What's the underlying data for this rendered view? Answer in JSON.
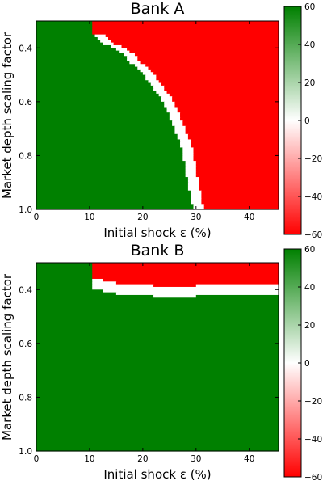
{
  "chart_data": [
    {
      "type": "heatmap",
      "title": "Bank A",
      "xlabel": "Initial shock ε (%)",
      "ylabel": "Market depth scaling factor",
      "xlim": [
        0,
        45.5
      ],
      "ylim": [
        0.3,
        1.0
      ],
      "y_inverted": true,
      "x_ticks": [
        "0",
        "10",
        "20",
        "30",
        "40"
      ],
      "y_ticks": [
        "0.4",
        "0.6",
        "0.8",
        "1.0"
      ],
      "colorbar": {
        "min": -60,
        "max": 60,
        "ticks": [
          "60",
          "40",
          "20",
          "0",
          "−20",
          "−40",
          "−60"
        ],
        "colors": [
          "#ff0000",
          "#ffffff",
          "#008000"
        ]
      },
      "regions": {
        "low_shock_value": 60,
        "high_shock_value": -60,
        "boundary_value": 0
      },
      "boundary_x": [
        [
          0.35,
          10.5
        ],
        [
          0.37,
          11.5
        ],
        [
          0.39,
          13
        ],
        [
          0.4,
          14.5
        ],
        [
          0.42,
          16
        ],
        [
          0.45,
          17.5
        ],
        [
          0.48,
          19
        ],
        [
          0.51,
          20.5
        ],
        [
          0.55,
          22
        ],
        [
          0.59,
          23.5
        ],
        [
          0.63,
          24.5
        ],
        [
          0.68,
          25.5
        ],
        [
          0.73,
          26.5
        ],
        [
          0.79,
          27.5
        ],
        [
          0.85,
          28
        ],
        [
          0.91,
          28.5
        ],
        [
          0.96,
          29
        ],
        [
          1.0,
          29.5
        ]
      ],
      "boundary_width": 2
    },
    {
      "type": "heatmap",
      "title": "Bank B",
      "xlabel": "Initial shock ε (%)",
      "ylabel": "Market depth scaling factor",
      "xlim": [
        0,
        45.5
      ],
      "ylim": [
        0.3,
        1.0
      ],
      "y_inverted": true,
      "x_ticks": [
        "0",
        "10",
        "20",
        "30",
        "40"
      ],
      "y_ticks": [
        "0.4",
        "0.6",
        "0.8",
        "1.0"
      ],
      "colorbar": {
        "min": -60,
        "max": 60,
        "ticks": [
          "60",
          "40",
          "20",
          "0",
          "−20",
          "−40",
          "−60"
        ],
        "colors": [
          "#ff0000",
          "#ffffff",
          "#008000"
        ]
      },
      "regions": {
        "low_shock_value": 60,
        "high_shock_value": -60,
        "boundary_value": 0
      },
      "boundary_y": [
        [
          10.5,
          0.355
        ],
        [
          11.5,
          0.355
        ],
        [
          12.5,
          0.365
        ],
        [
          15,
          0.375
        ],
        [
          18.5,
          0.38
        ],
        [
          22,
          0.385
        ],
        [
          25,
          0.385
        ],
        [
          30,
          0.385
        ],
        [
          34.5,
          0.38
        ],
        [
          45.5,
          0.38
        ]
      ],
      "boundary_height": 0.045
    }
  ]
}
